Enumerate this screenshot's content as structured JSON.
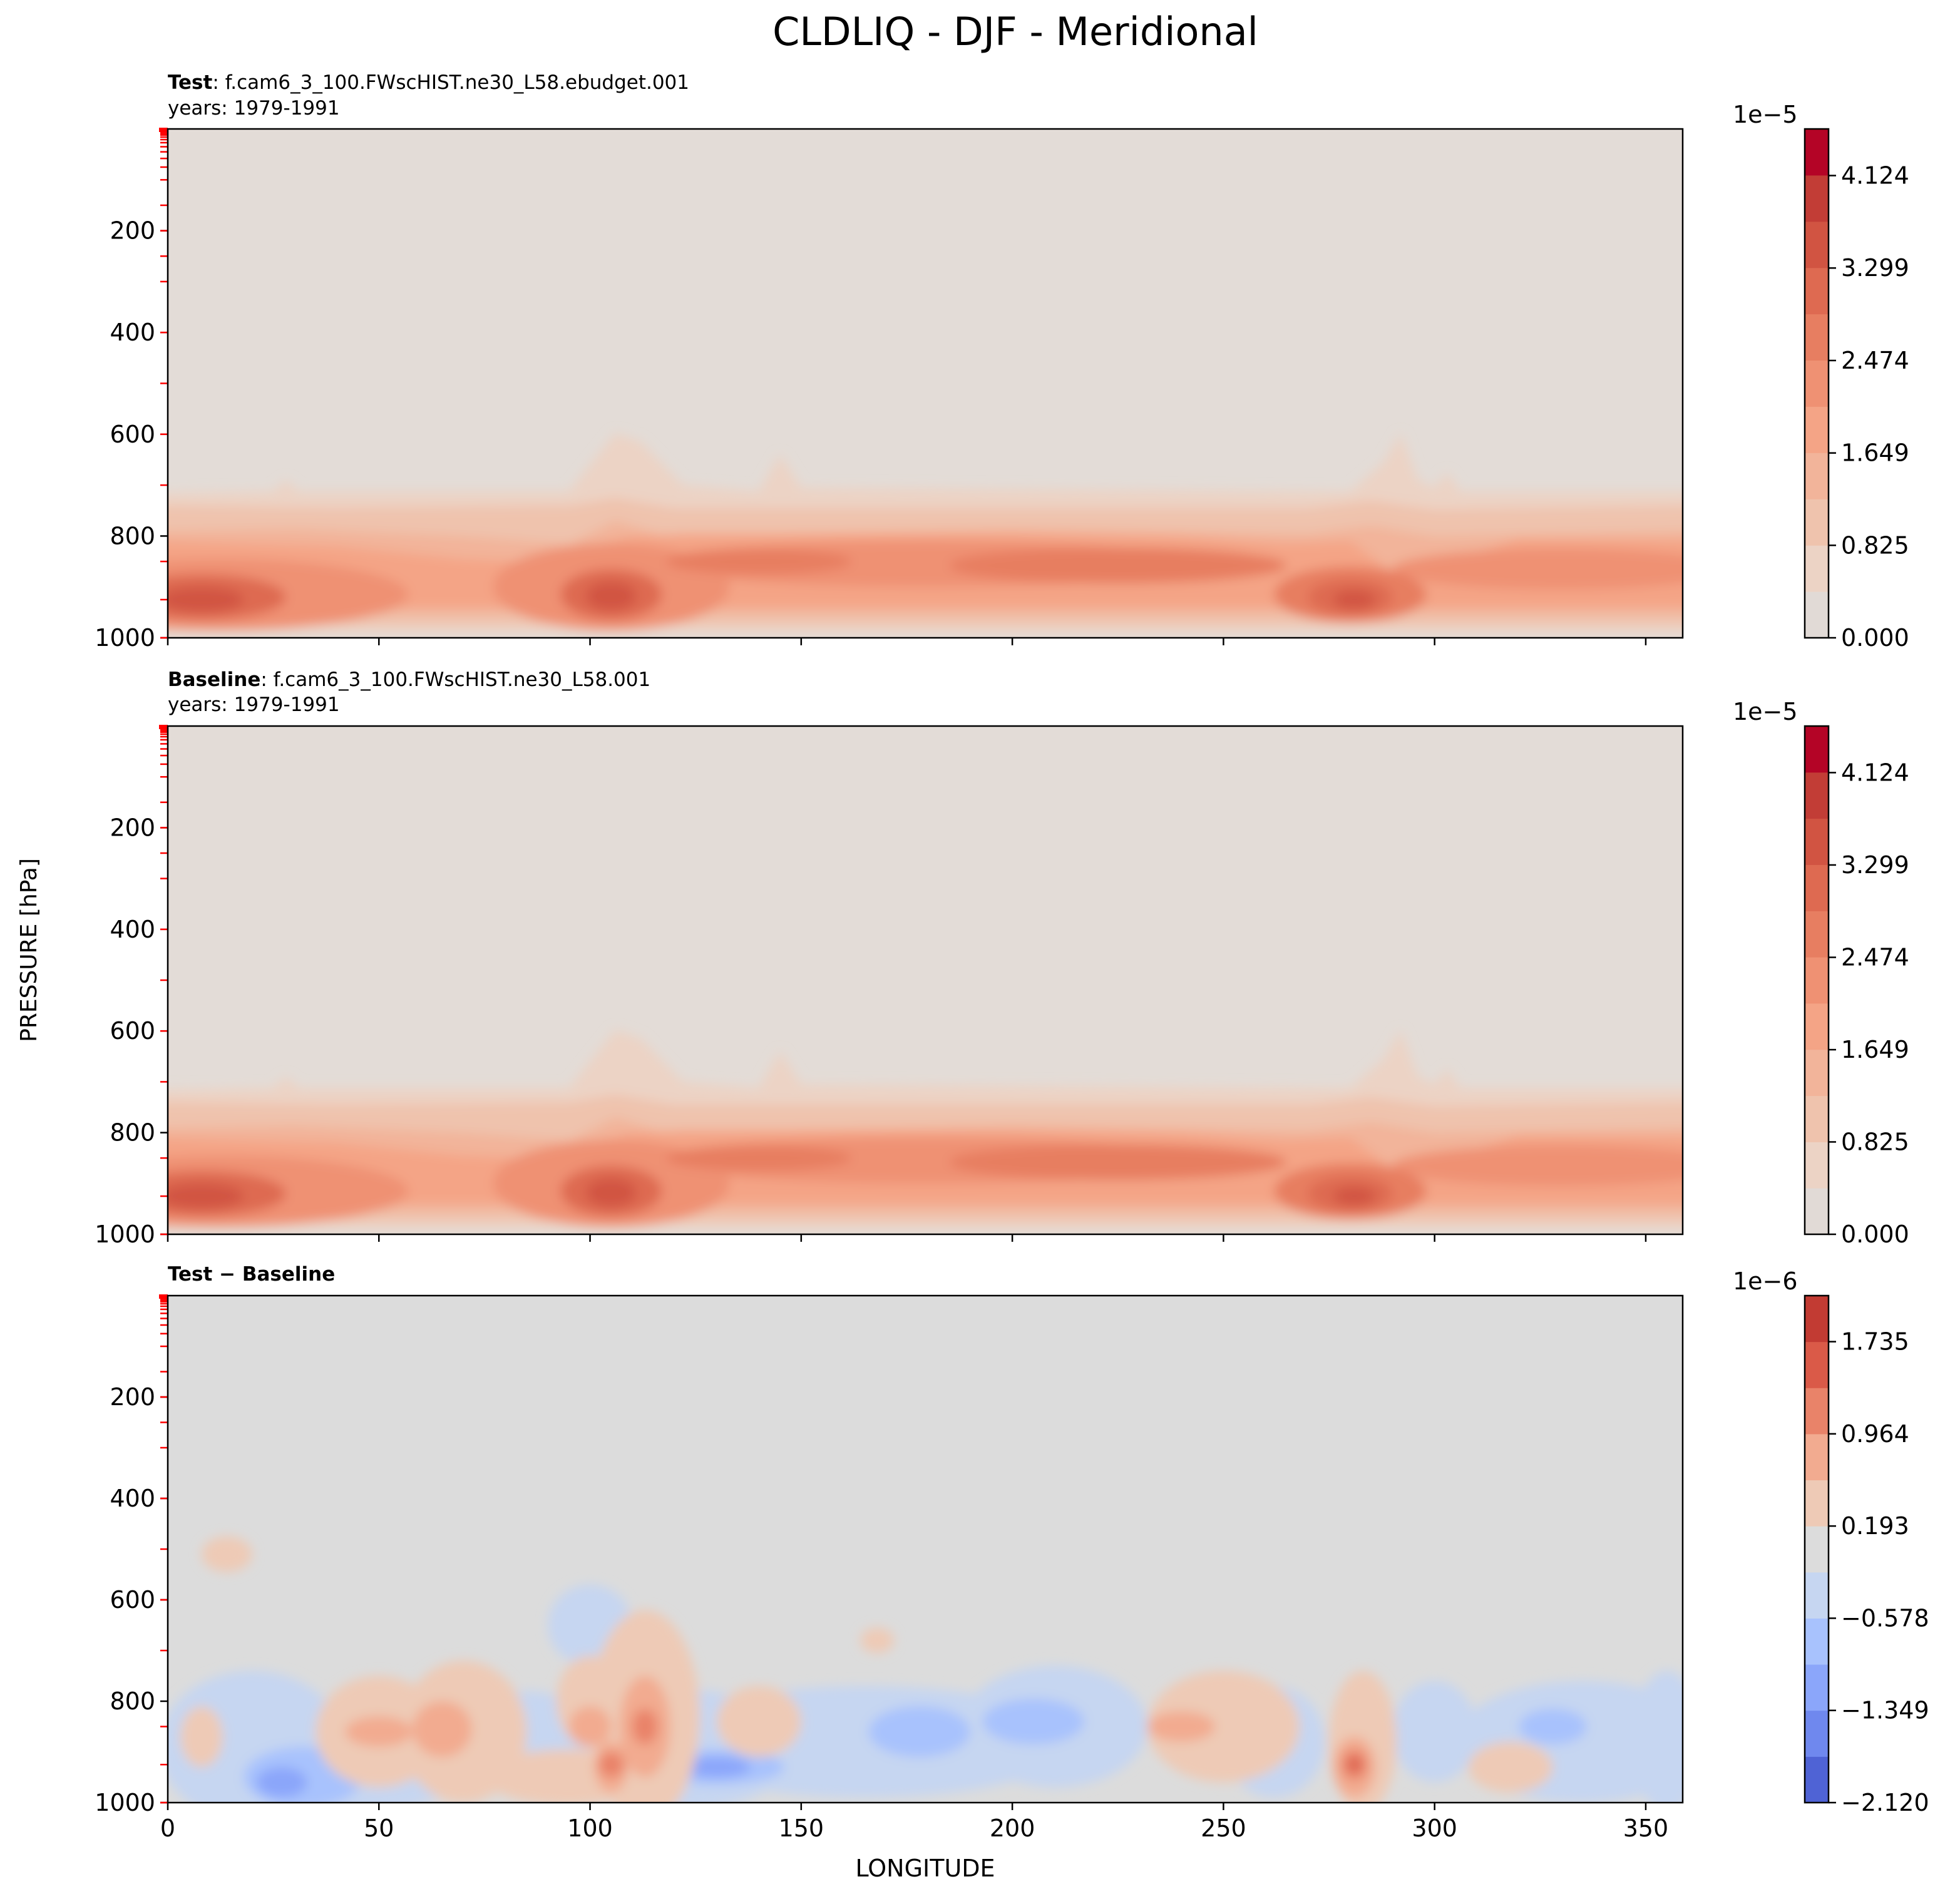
{
  "figure": {
    "title": "CLDLIQ - DJF - Meridional",
    "ylabel": "PRESSURE [hPa]",
    "xlabel": "LONGITUDE"
  },
  "chart_data": [
    {
      "type": "heatmap",
      "panel": "test",
      "title_bold": "Test",
      "title_rest": ": f.cam6_3_100.FWscHIST.ne30_L58.ebudget.001",
      "subtitle": "years: 1979-1991",
      "xlim": [
        0,
        358.75
      ],
      "ylim": [
        1000,
        0
      ],
      "yticks": [
        200,
        400,
        600,
        800,
        1000
      ],
      "colorbar": {
        "multiplier": "1e−5",
        "ticks": [
          "0.000",
          "0.825",
          "1.649",
          "2.474",
          "3.299",
          "4.124"
        ],
        "tick_values": [
          0.0,
          0.825,
          1.649,
          2.474,
          3.299,
          4.124
        ],
        "range": [
          0.0,
          4.54
        ],
        "levels": 11,
        "colormap": "coolwarm-upper"
      },
      "background_color": "#e3dcd7",
      "features": [
        {
          "kind": "low-cloud band",
          "lon_range": [
            0,
            358.75
          ],
          "p_range": [
            710,
            1000
          ],
          "peak": 2.0
        },
        {
          "kind": "max",
          "lon": 8,
          "p": 925,
          "value": 4.0
        },
        {
          "kind": "max",
          "lon": 105,
          "p": 910,
          "value": 3.5
        },
        {
          "kind": "max",
          "lon": 225,
          "p": 860,
          "value": 3.3
        },
        {
          "kind": "max",
          "lon": 280,
          "p": 920,
          "value": 3.7
        }
      ]
    },
    {
      "type": "heatmap",
      "panel": "baseline",
      "title_bold": "Baseline",
      "title_rest": ": f.cam6_3_100.FWscHIST.ne30_L58.001",
      "subtitle": "years: 1979-1991",
      "xlim": [
        0,
        358.75
      ],
      "ylim": [
        1000,
        0
      ],
      "yticks": [
        200,
        400,
        600,
        800,
        1000
      ],
      "colorbar": {
        "multiplier": "1e−5",
        "ticks": [
          "0.000",
          "0.825",
          "1.649",
          "2.474",
          "3.299",
          "4.124"
        ],
        "tick_values": [
          0.0,
          0.825,
          1.649,
          2.474,
          3.299,
          4.124
        ],
        "range": [
          0.0,
          4.54
        ],
        "levels": 11,
        "colormap": "coolwarm-upper"
      },
      "background_color": "#e3dcd7",
      "features": [
        {
          "kind": "low-cloud band",
          "lon_range": [
            0,
            358.75
          ],
          "p_range": [
            710,
            1000
          ],
          "peak": 2.0
        },
        {
          "kind": "max",
          "lon": 8,
          "p": 925,
          "value": 4.0
        },
        {
          "kind": "max",
          "lon": 105,
          "p": 910,
          "value": 3.5
        },
        {
          "kind": "max",
          "lon": 225,
          "p": 860,
          "value": 3.3
        },
        {
          "kind": "max",
          "lon": 280,
          "p": 920,
          "value": 3.7
        }
      ]
    },
    {
      "type": "heatmap",
      "panel": "difference",
      "title_bold": "Test − Baseline",
      "title_rest": "",
      "subtitle": "",
      "xlim": [
        0,
        358.75
      ],
      "ylim": [
        1000,
        0
      ],
      "xticks": [
        0,
        50,
        100,
        150,
        200,
        250,
        300,
        350
      ],
      "yticks": [
        200,
        400,
        600,
        800,
        1000
      ],
      "colorbar": {
        "multiplier": "1e−6",
        "ticks": [
          "−2.120",
          "−1.349",
          "−0.578",
          "0.193",
          "0.964",
          "1.735"
        ],
        "tick_values": [
          -2.12,
          -1.349,
          -0.578,
          0.193,
          0.964,
          1.735
        ],
        "range": [
          -2.12,
          2.12
        ],
        "levels": 11,
        "colormap": "coolwarm"
      },
      "background_color": "#dcdcdc",
      "features": [
        {
          "kind": "max",
          "lon": 281,
          "p": 925,
          "value": 2.0
        },
        {
          "kind": "max",
          "lon": 105,
          "p": 925,
          "value": 1.8
        },
        {
          "kind": "max",
          "lon": 113,
          "p": 850,
          "value": 1.7
        },
        {
          "kind": "max",
          "lon": 65,
          "p": 850,
          "value": 1.2
        },
        {
          "kind": "min",
          "lon": 130,
          "p": 930,
          "value": -1.9
        },
        {
          "kind": "min",
          "lon": 30,
          "p": 950,
          "value": -1.5
        },
        {
          "kind": "min",
          "lon": 205,
          "p": 830,
          "value": -1.3
        }
      ]
    }
  ]
}
